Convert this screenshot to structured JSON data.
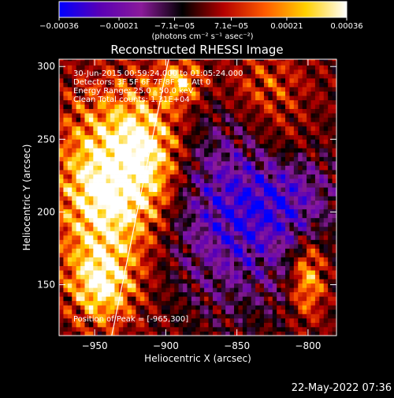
{
  "chart_data": {
    "type": "heatmap",
    "title": "Reconstructed RHESSI Image",
    "xlabel": "Heliocentric X (arcsec)",
    "ylabel": "Heliocentric Y (arcsec)",
    "xlim": [
      -975,
      -780
    ],
    "ylim": [
      115,
      305
    ],
    "x_ticks": [
      -950,
      -900,
      -850,
      -800
    ],
    "x_tick_labels": [
      "−950",
      "−900",
      "−850",
      "−800"
    ],
    "y_ticks": [
      150,
      200,
      250,
      300
    ],
    "y_tick_labels": [
      "150",
      "200",
      "250",
      "300"
    ],
    "colorbar": {
      "range": [
        -0.00036,
        0.00036
      ],
      "ticks": [
        -0.00036,
        -0.00021,
        -7.1e-05,
        7.1e-05,
        0.00021,
        0.00036
      ],
      "tick_labels": [
        "−0.00036",
        "−0.00021",
        "−7.1e−05",
        "7.1e−05",
        "0.00021",
        "0.00036"
      ],
      "units_label": "(photons cm⁻² s⁻¹ asec⁻²)",
      "colors": [
        "#0000ff",
        "#5a00b4",
        "#8a1a9a",
        "#000000",
        "#b40000",
        "#ff5a00",
        "#ffd000",
        "#ffffff"
      ]
    },
    "info_lines": [
      "30-Jun-2015 00:59:24.000 to 01:05:24.000",
      "Detectors: 3F 5F 6F 7F 8F 9F, Att 0",
      "Energy Range: 25.0 - 50.0 keV",
      "Clean    Total counts: 1.31E+04"
    ],
    "peak_label": "Position of Peak = [-965,300]",
    "limb_line": {
      "x": [
        -938,
        -898
      ],
      "y": [
        115,
        305
      ]
    },
    "hot_regions": [
      {
        "x": -945,
        "y": 215,
        "sx": 22,
        "sy": 40,
        "amp": 0.00036
      },
      {
        "x": -915,
        "y": 240,
        "sx": 18,
        "sy": 30,
        "amp": 0.0003
      },
      {
        "x": -945,
        "y": 150,
        "sx": 15,
        "sy": 18,
        "amp": 0.00028
      },
      {
        "x": -890,
        "y": 290,
        "sx": 10,
        "sy": 10,
        "amp": 0.00025
      },
      {
        "x": -800,
        "y": 155,
        "sx": 8,
        "sy": 18,
        "amp": 0.00025
      },
      {
        "x": -830,
        "y": 285,
        "sx": 20,
        "sy": 18,
        "amp": 0.00012
      },
      {
        "x": -820,
        "y": 245,
        "sx": 18,
        "sy": 15,
        "amp": 0.0001
      }
    ],
    "cold_regions": [
      {
        "x": -850,
        "y": 200,
        "sx": 30,
        "sy": 40,
        "amp": -0.00028
      },
      {
        "x": -810,
        "y": 210,
        "sx": 20,
        "sy": 22,
        "amp": -0.00015
      }
    ]
  },
  "footer": {
    "timestamp": "22-May-2022 07:36"
  }
}
